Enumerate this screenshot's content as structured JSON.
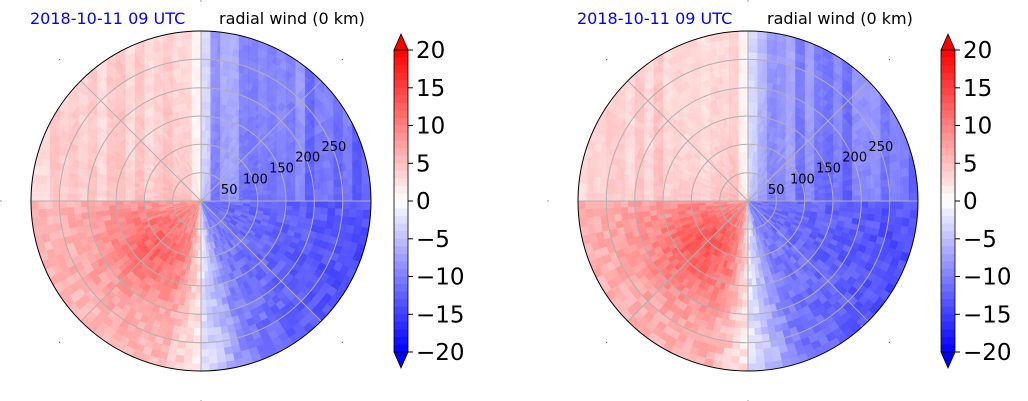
{
  "figure": {
    "panels": [
      {
        "date_label": "2018-10-11 09 UTC",
        "field_title": "radial wind (0 km)"
      },
      {
        "date_label": "2018-10-11 09 UTC",
        "field_title": "radial wind (0 km)"
      }
    ]
  },
  "colors": {
    "date_label": "#0000ff",
    "neg_extreme": "#0000ff",
    "pos_extreme": "#ff0000",
    "neutral": "#ffffff",
    "grid": "#b0b0b0"
  },
  "chart_data": [
    {
      "type": "heatmap",
      "projection": "polar",
      "variable": "radial wind",
      "colormap": "bwr",
      "vmin": -20,
      "vmax": 20,
      "colorbar_ticks": [
        -20,
        -15,
        -10,
        -5,
        0,
        5,
        10,
        15,
        20
      ],
      "colorbar_tick_labels": [
        "−20",
        "−15",
        "−10",
        "−5",
        "0",
        "5",
        "10",
        "15",
        "20"
      ],
      "colorbar_extend": "both",
      "radial_ticks": [
        50,
        100,
        150,
        200,
        250
      ],
      "radial_max": 300,
      "angular_gridlines_deg": [
        0,
        45,
        90,
        135,
        180,
        225,
        270,
        315
      ],
      "grid": true,
      "pattern": {
        "positive_sector_deg": [
          180,
          270
        ],
        "negative_sector_deg": [
          270,
          450
        ],
        "peak_pos": 12,
        "peak_neg": -14
      }
    },
    {
      "type": "heatmap",
      "projection": "polar",
      "variable": "radial wind",
      "colormap": "bwr",
      "vmin": -20,
      "vmax": 20,
      "colorbar_ticks": [
        -20,
        -15,
        -10,
        -5,
        0,
        5,
        10,
        15,
        20
      ],
      "colorbar_tick_labels": [
        "−20",
        "−15",
        "−10",
        "−5",
        "0",
        "5",
        "10",
        "15",
        "20"
      ],
      "colorbar_extend": "both",
      "radial_ticks": [
        50,
        100,
        150,
        200,
        250
      ],
      "radial_max": 300,
      "angular_gridlines_deg": [
        0,
        45,
        90,
        135,
        180,
        225,
        270,
        315
      ],
      "grid": true,
      "pattern": {
        "positive_sector_deg": [
          180,
          270
        ],
        "negative_sector_deg": [
          270,
          450
        ],
        "peak_pos": 13,
        "peak_neg": -14
      }
    }
  ]
}
